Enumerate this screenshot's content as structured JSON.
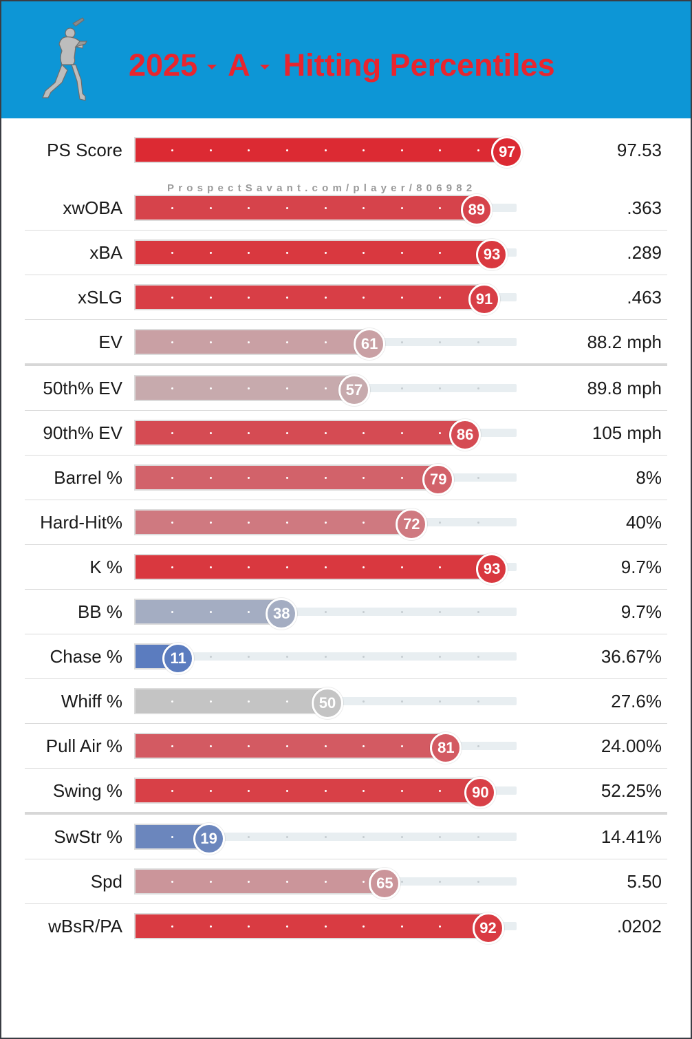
{
  "header": {
    "year": "2025",
    "level": "A",
    "title": "Hitting Percentiles",
    "bg_color": "#0d96d6",
    "title_color": "#e8252e",
    "logo_icon": "batter-silhouette-icon"
  },
  "watermark": "ProspectSavant.com/player/806982",
  "chart_data": {
    "type": "bar",
    "title": "2025 A Hitting Percentiles",
    "xlim": [
      0,
      100
    ],
    "categories": [
      "PS Score",
      "xwOBA",
      "xBA",
      "xSLG",
      "EV",
      "50th% EV",
      "90th% EV",
      "Barrel %",
      "Hard-Hit%",
      "K %",
      "BB %",
      "Chase %",
      "Whiff %",
      "Pull Air %",
      "Swing %",
      "SwStr %",
      "Spd",
      "wBsR/PA"
    ],
    "values": [
      97,
      89,
      93,
      91,
      61,
      57,
      86,
      79,
      72,
      93,
      38,
      11,
      50,
      81,
      90,
      19,
      65,
      92
    ],
    "rows": [
      {
        "label": "PS Score",
        "percentile": "97",
        "value": "97.53",
        "color": "#dc2a33"
      },
      {
        "label": "xwOBA",
        "percentile": "89",
        "value": ".363",
        "color": "#d6434b"
      },
      {
        "label": "xBA",
        "percentile": "93",
        "value": ".289",
        "color": "#d9383f"
      },
      {
        "label": "xSLG",
        "percentile": "91",
        "value": ".463",
        "color": "#d83e46"
      },
      {
        "label": "EV",
        "percentile": "61",
        "value": "88.2 mph",
        "color": "#c9a0a4"
      },
      {
        "label": "50th% EV",
        "percentile": "57",
        "value": "89.8 mph",
        "color": "#c7aaad"
      },
      {
        "label": "90th% EV",
        "percentile": "86",
        "value": "105 mph",
        "color": "#d54b53"
      },
      {
        "label": "Barrel %",
        "percentile": "79",
        "value": "8%",
        "color": "#d2626a"
      },
      {
        "label": "Hard-Hit%",
        "percentile": "72",
        "value": "40%",
        "color": "#cf7980"
      },
      {
        "label": "K %",
        "percentile": "93",
        "value": "9.7%",
        "color": "#d9383f"
      },
      {
        "label": "BB %",
        "percentile": "38",
        "value": "9.7%",
        "color": "#a4adc2"
      },
      {
        "label": "Chase %",
        "percentile": "11",
        "value": "36.67%",
        "color": "#5b7cbf"
      },
      {
        "label": "Whiff %",
        "percentile": "50",
        "value": "27.6%",
        "color": "#c4c4c4"
      },
      {
        "label": "Pull Air %",
        "percentile": "81",
        "value": "24.00%",
        "color": "#d35a62"
      },
      {
        "label": "Swing %",
        "percentile": "90",
        "value": "52.25%",
        "color": "#d84047"
      },
      {
        "label": "SwStr %",
        "percentile": "19",
        "value": "14.41%",
        "color": "#6b86bd"
      },
      {
        "label": "Spd",
        "percentile": "65",
        "value": "5.50",
        "color": "#cb959a"
      },
      {
        "label": "wBsR/PA",
        "percentile": "92",
        "value": ".0202",
        "color": "#d93b42"
      }
    ]
  }
}
